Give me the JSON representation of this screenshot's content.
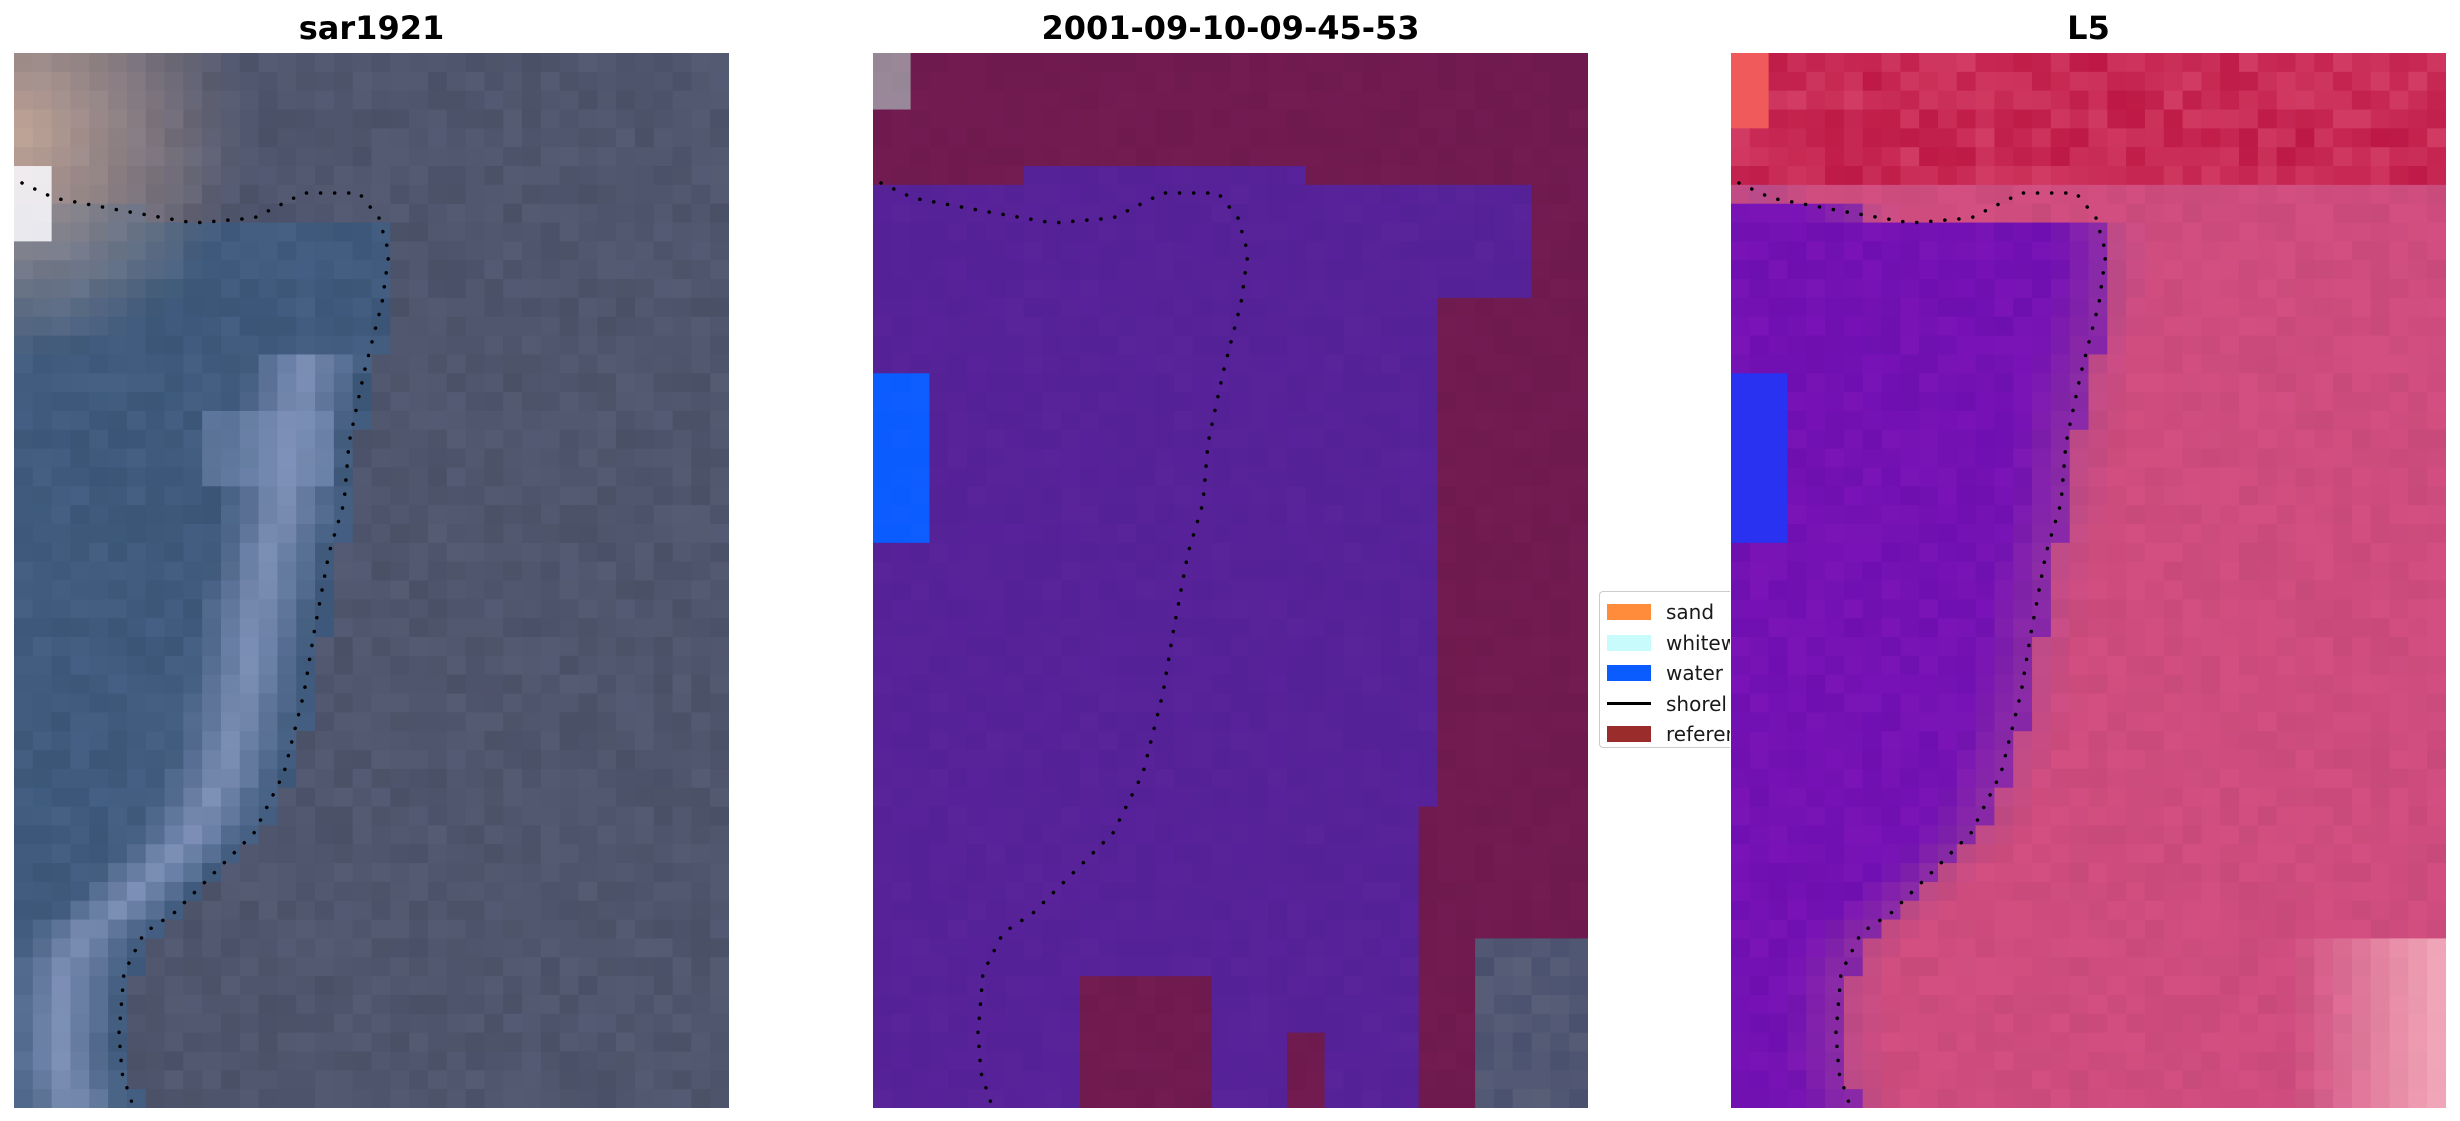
{
  "panels": [
    {
      "title": "sar1921",
      "style": "rgb-image"
    },
    {
      "title": "2001-09-10-09-45-53",
      "style": "classified-image"
    },
    {
      "title": "L5",
      "style": "probability-image"
    }
  ],
  "legend": {
    "entries": [
      {
        "label": "sand",
        "color": "#ff8c3a",
        "kind": "patch"
      },
      {
        "label": "whitew",
        "color": "#c8fbfb",
        "kind": "patch"
      },
      {
        "label": "water",
        "color": "#0a5cff",
        "kind": "patch"
      },
      {
        "label": "shorel",
        "color": "#000000",
        "kind": "line"
      },
      {
        "label": "referen",
        "color": "#9a2c2c",
        "kind": "patch"
      }
    ]
  },
  "colors": {
    "rgb_water_base": "#3a5576",
    "rgb_land_base": "#4a5066",
    "class_water_mask": "#542196",
    "class_reference_mask": "#6e1a4e",
    "class_water": "#0a5cff",
    "prob_water": "#6e0fb0",
    "prob_land": "#c84a7a",
    "shoreline": "#000000"
  }
}
